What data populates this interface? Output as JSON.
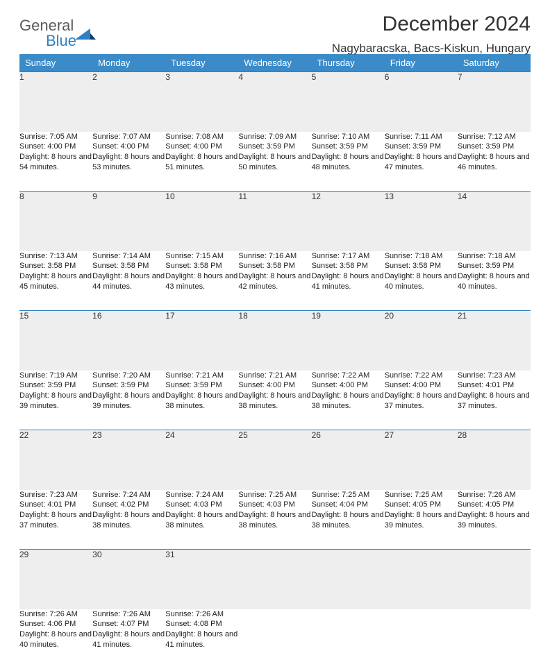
{
  "logo": {
    "word1": "General",
    "word2": "Blue"
  },
  "header": {
    "title": "December 2024",
    "location": "Nagybaracska, Bacs-Kiskun, Hungary"
  },
  "colors": {
    "header_bg": "#3b8bc9",
    "rule": "#2f7fc2",
    "daynum_bg": "#eeeeee",
    "text": "#222222",
    "title": "#333333"
  },
  "weekdays": [
    "Sunday",
    "Monday",
    "Tuesday",
    "Wednesday",
    "Thursday",
    "Friday",
    "Saturday"
  ],
  "weeks": [
    [
      {
        "n": "1",
        "sr": "Sunrise: 7:05 AM",
        "ss": "Sunset: 4:00 PM",
        "dl": "Daylight: 8 hours and 54 minutes."
      },
      {
        "n": "2",
        "sr": "Sunrise: 7:07 AM",
        "ss": "Sunset: 4:00 PM",
        "dl": "Daylight: 8 hours and 53 minutes."
      },
      {
        "n": "3",
        "sr": "Sunrise: 7:08 AM",
        "ss": "Sunset: 4:00 PM",
        "dl": "Daylight: 8 hours and 51 minutes."
      },
      {
        "n": "4",
        "sr": "Sunrise: 7:09 AM",
        "ss": "Sunset: 3:59 PM",
        "dl": "Daylight: 8 hours and 50 minutes."
      },
      {
        "n": "5",
        "sr": "Sunrise: 7:10 AM",
        "ss": "Sunset: 3:59 PM",
        "dl": "Daylight: 8 hours and 48 minutes."
      },
      {
        "n": "6",
        "sr": "Sunrise: 7:11 AM",
        "ss": "Sunset: 3:59 PM",
        "dl": "Daylight: 8 hours and 47 minutes."
      },
      {
        "n": "7",
        "sr": "Sunrise: 7:12 AM",
        "ss": "Sunset: 3:59 PM",
        "dl": "Daylight: 8 hours and 46 minutes."
      }
    ],
    [
      {
        "n": "8",
        "sr": "Sunrise: 7:13 AM",
        "ss": "Sunset: 3:58 PM",
        "dl": "Daylight: 8 hours and 45 minutes."
      },
      {
        "n": "9",
        "sr": "Sunrise: 7:14 AM",
        "ss": "Sunset: 3:58 PM",
        "dl": "Daylight: 8 hours and 44 minutes."
      },
      {
        "n": "10",
        "sr": "Sunrise: 7:15 AM",
        "ss": "Sunset: 3:58 PM",
        "dl": "Daylight: 8 hours and 43 minutes."
      },
      {
        "n": "11",
        "sr": "Sunrise: 7:16 AM",
        "ss": "Sunset: 3:58 PM",
        "dl": "Daylight: 8 hours and 42 minutes."
      },
      {
        "n": "12",
        "sr": "Sunrise: 7:17 AM",
        "ss": "Sunset: 3:58 PM",
        "dl": "Daylight: 8 hours and 41 minutes."
      },
      {
        "n": "13",
        "sr": "Sunrise: 7:18 AM",
        "ss": "Sunset: 3:58 PM",
        "dl": "Daylight: 8 hours and 40 minutes."
      },
      {
        "n": "14",
        "sr": "Sunrise: 7:18 AM",
        "ss": "Sunset: 3:59 PM",
        "dl": "Daylight: 8 hours and 40 minutes."
      }
    ],
    [
      {
        "n": "15",
        "sr": "Sunrise: 7:19 AM",
        "ss": "Sunset: 3:59 PM",
        "dl": "Daylight: 8 hours and 39 minutes."
      },
      {
        "n": "16",
        "sr": "Sunrise: 7:20 AM",
        "ss": "Sunset: 3:59 PM",
        "dl": "Daylight: 8 hours and 39 minutes."
      },
      {
        "n": "17",
        "sr": "Sunrise: 7:21 AM",
        "ss": "Sunset: 3:59 PM",
        "dl": "Daylight: 8 hours and 38 minutes."
      },
      {
        "n": "18",
        "sr": "Sunrise: 7:21 AM",
        "ss": "Sunset: 4:00 PM",
        "dl": "Daylight: 8 hours and 38 minutes."
      },
      {
        "n": "19",
        "sr": "Sunrise: 7:22 AM",
        "ss": "Sunset: 4:00 PM",
        "dl": "Daylight: 8 hours and 38 minutes."
      },
      {
        "n": "20",
        "sr": "Sunrise: 7:22 AM",
        "ss": "Sunset: 4:00 PM",
        "dl": "Daylight: 8 hours and 37 minutes."
      },
      {
        "n": "21",
        "sr": "Sunrise: 7:23 AM",
        "ss": "Sunset: 4:01 PM",
        "dl": "Daylight: 8 hours and 37 minutes."
      }
    ],
    [
      {
        "n": "22",
        "sr": "Sunrise: 7:23 AM",
        "ss": "Sunset: 4:01 PM",
        "dl": "Daylight: 8 hours and 37 minutes."
      },
      {
        "n": "23",
        "sr": "Sunrise: 7:24 AM",
        "ss": "Sunset: 4:02 PM",
        "dl": "Daylight: 8 hours and 38 minutes."
      },
      {
        "n": "24",
        "sr": "Sunrise: 7:24 AM",
        "ss": "Sunset: 4:03 PM",
        "dl": "Daylight: 8 hours and 38 minutes."
      },
      {
        "n": "25",
        "sr": "Sunrise: 7:25 AM",
        "ss": "Sunset: 4:03 PM",
        "dl": "Daylight: 8 hours and 38 minutes."
      },
      {
        "n": "26",
        "sr": "Sunrise: 7:25 AM",
        "ss": "Sunset: 4:04 PM",
        "dl": "Daylight: 8 hours and 38 minutes."
      },
      {
        "n": "27",
        "sr": "Sunrise: 7:25 AM",
        "ss": "Sunset: 4:05 PM",
        "dl": "Daylight: 8 hours and 39 minutes."
      },
      {
        "n": "28",
        "sr": "Sunrise: 7:26 AM",
        "ss": "Sunset: 4:05 PM",
        "dl": "Daylight: 8 hours and 39 minutes."
      }
    ],
    [
      {
        "n": "29",
        "sr": "Sunrise: 7:26 AM",
        "ss": "Sunset: 4:06 PM",
        "dl": "Daylight: 8 hours and 40 minutes."
      },
      {
        "n": "30",
        "sr": "Sunrise: 7:26 AM",
        "ss": "Sunset: 4:07 PM",
        "dl": "Daylight: 8 hours and 41 minutes."
      },
      {
        "n": "31",
        "sr": "Sunrise: 7:26 AM",
        "ss": "Sunset: 4:08 PM",
        "dl": "Daylight: 8 hours and 41 minutes."
      },
      null,
      null,
      null,
      null
    ]
  ]
}
